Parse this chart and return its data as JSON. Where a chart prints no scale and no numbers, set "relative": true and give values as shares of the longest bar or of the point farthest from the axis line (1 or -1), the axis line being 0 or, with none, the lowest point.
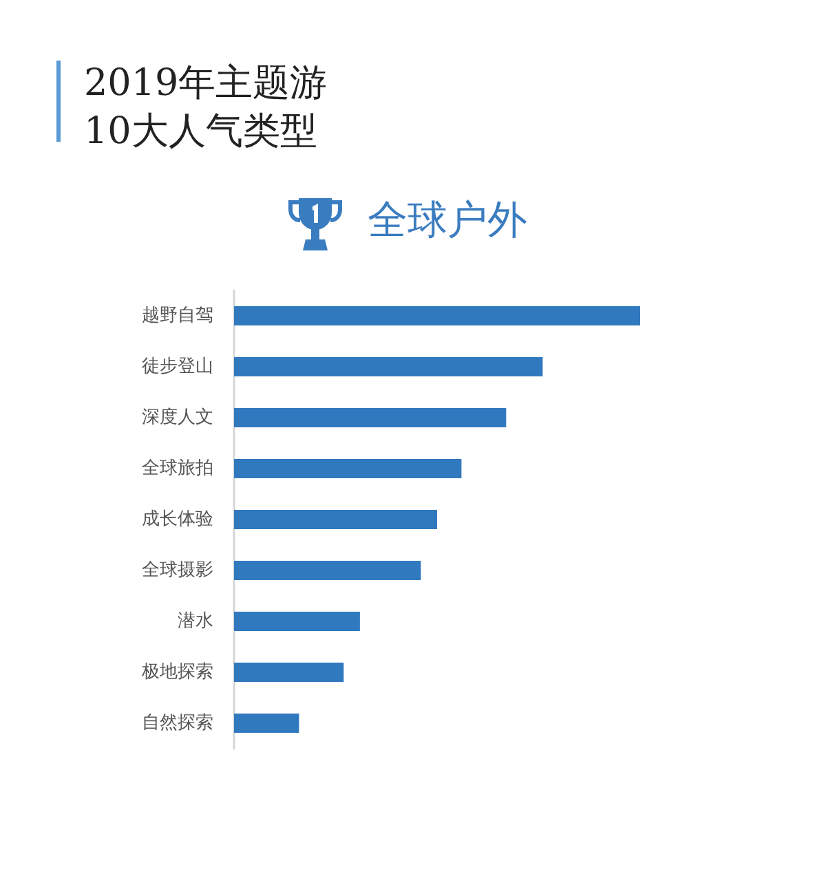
{
  "chart_data": {
    "type": "bar",
    "orientation": "horizontal",
    "relative": true,
    "title": "2019年主题游\n10大人气类型",
    "subtitle": "全球户外",
    "categories": [
      "越野自驾",
      "徒步登山",
      "深度人文",
      "全球旅拍",
      "成长体验",
      "全球摄影",
      "潜水",
      "极地探索",
      "自然探索"
    ],
    "values": [
      1,
      0.76,
      0.67,
      0.56,
      0.5,
      0.46,
      0.31,
      0.27,
      0.16
    ],
    "color": "#3179bf"
  }
}
